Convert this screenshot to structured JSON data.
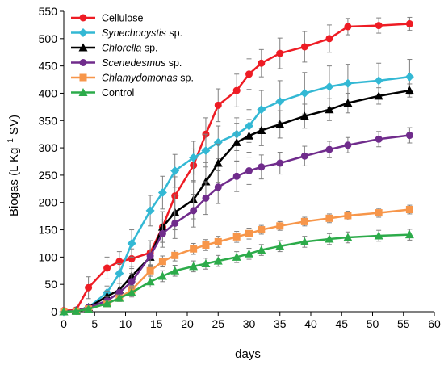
{
  "chart_data": {
    "type": "line",
    "xlabel": "days",
    "ylabel_parts": {
      "pre": "Biogas (L Kg",
      "sup": "−1",
      "post": " SV)"
    },
    "xlim": [
      0,
      60
    ],
    "ylim": [
      0,
      550
    ],
    "xticks": [
      0,
      5,
      10,
      15,
      20,
      25,
      30,
      35,
      40,
      45,
      50,
      55,
      60
    ],
    "yticks": [
      0,
      50,
      100,
      150,
      200,
      250,
      300,
      350,
      400,
      450,
      500,
      550
    ],
    "legend_position": "top-left",
    "grid": false,
    "series": [
      {
        "name_italic": "",
        "name_rest": "Cellulose",
        "color": "#ee1c24",
        "marker": "circle",
        "x": [
          0,
          2,
          4,
          7,
          9,
          11,
          14,
          16,
          18,
          21,
          23,
          25,
          28,
          30,
          32,
          35,
          39,
          43,
          46,
          51,
          56
        ],
        "y": [
          2,
          3,
          44,
          80,
          92,
          97,
          108,
          155,
          212,
          268,
          325,
          378,
          405,
          435,
          455,
          473,
          485,
          500,
          522,
          524,
          527
        ],
        "err": [
          0,
          2,
          20,
          20,
          18,
          18,
          22,
          28,
          35,
          30,
          30,
          30,
          30,
          28,
          25,
          28,
          28,
          25,
          15,
          14,
          12
        ]
      },
      {
        "name_italic": "Synechocystis",
        "name_rest": " sp.",
        "color": "#33b8d4",
        "marker": "diamond",
        "x": [
          0,
          2,
          4,
          7,
          9,
          11,
          14,
          16,
          18,
          21,
          23,
          25,
          28,
          30,
          32,
          35,
          39,
          43,
          46,
          51,
          56
        ],
        "y": [
          0,
          2,
          8,
          35,
          70,
          125,
          185,
          218,
          258,
          282,
          295,
          310,
          325,
          340,
          370,
          385,
          400,
          412,
          418,
          423,
          430
        ],
        "err": [
          0,
          2,
          5,
          12,
          18,
          25,
          28,
          30,
          30,
          30,
          30,
          30,
          30,
          30,
          35,
          38,
          38,
          38,
          35,
          32,
          32
        ]
      },
      {
        "name_italic": "Chlorella",
        "name_rest": " sp.",
        "color": "#000000",
        "marker": "triangle",
        "x": [
          0,
          2,
          4,
          7,
          9,
          11,
          14,
          16,
          18,
          21,
          23,
          25,
          28,
          30,
          32,
          35,
          39,
          43,
          46,
          51,
          56
        ],
        "y": [
          0,
          2,
          8,
          28,
          40,
          65,
          100,
          155,
          182,
          205,
          238,
          272,
          310,
          322,
          332,
          343,
          358,
          370,
          382,
          395,
          405
        ],
        "err": [
          0,
          2,
          5,
          10,
          12,
          18,
          22,
          28,
          32,
          35,
          35,
          35,
          35,
          30,
          28,
          25,
          22,
          20,
          18,
          15,
          12
        ]
      },
      {
        "name_italic": "Scenedesmus",
        "name_rest": " sp.",
        "color": "#702c8c",
        "marker": "circle",
        "x": [
          0,
          2,
          4,
          7,
          9,
          11,
          14,
          16,
          18,
          21,
          23,
          25,
          28,
          30,
          32,
          35,
          39,
          43,
          46,
          51,
          56
        ],
        "y": [
          0,
          2,
          8,
          20,
          35,
          55,
          102,
          143,
          162,
          185,
          208,
          228,
          248,
          258,
          265,
          272,
          285,
          297,
          305,
          316,
          323
        ],
        "err": [
          0,
          2,
          4,
          8,
          10,
          15,
          20,
          25,
          28,
          30,
          30,
          30,
          28,
          25,
          22,
          20,
          18,
          15,
          14,
          14,
          14
        ]
      },
      {
        "name_italic": "Chlamydomonas",
        "name_rest": " sp.",
        "color": "#f7964a",
        "marker": "square",
        "x": [
          0,
          2,
          4,
          7,
          9,
          11,
          14,
          16,
          18,
          21,
          23,
          25,
          28,
          30,
          32,
          35,
          39,
          43,
          46,
          51,
          56
        ],
        "y": [
          0,
          1,
          5,
          15,
          25,
          40,
          75,
          92,
          103,
          115,
          122,
          128,
          137,
          143,
          150,
          157,
          165,
          171,
          176,
          181,
          187
        ],
        "err": [
          0,
          1,
          3,
          5,
          6,
          8,
          10,
          10,
          10,
          10,
          10,
          10,
          10,
          10,
          8,
          8,
          8,
          8,
          8,
          8,
          8
        ]
      },
      {
        "name_italic": "",
        "name_rest": "Control",
        "color": "#2cab4a",
        "marker": "triangle",
        "x": [
          0,
          2,
          4,
          7,
          9,
          11,
          14,
          16,
          18,
          21,
          23,
          25,
          28,
          30,
          32,
          35,
          39,
          43,
          46,
          51,
          56
        ],
        "y": [
          0,
          1,
          5,
          15,
          25,
          35,
          55,
          65,
          75,
          83,
          88,
          93,
          100,
          106,
          113,
          120,
          128,
          133,
          136,
          139,
          141
        ],
        "err": [
          0,
          1,
          3,
          5,
          6,
          8,
          10,
          10,
          10,
          10,
          10,
          10,
          10,
          10,
          10,
          10,
          10,
          10,
          10,
          10,
          10
        ]
      }
    ]
  }
}
